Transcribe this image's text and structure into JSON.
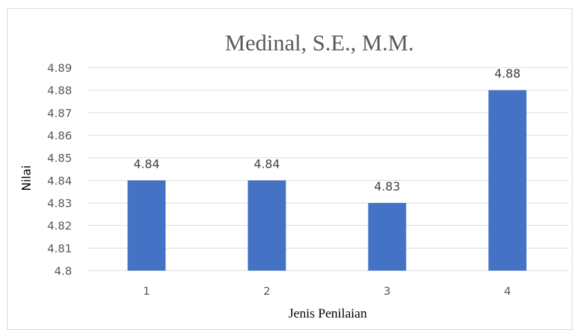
{
  "chart_data": {
    "type": "bar",
    "title": "Medinal, S.E., M.M.",
    "xlabel": "Jenis Penilaian",
    "ylabel": "Nilai",
    "categories": [
      "1",
      "2",
      "3",
      "4"
    ],
    "values": [
      4.84,
      4.84,
      4.83,
      4.88
    ],
    "data_labels": [
      "4.84",
      "4.84",
      "4.83",
      "4.88"
    ],
    "ylim": [
      4.8,
      4.89
    ],
    "yticks": [
      "4.8",
      "4.81",
      "4.82",
      "4.83",
      "4.84",
      "4.85",
      "4.86",
      "4.87",
      "4.88",
      "4.89"
    ],
    "grid": true,
    "legend": "none",
    "bar_color": "#4472C4",
    "grid_color": "#d9d9d9"
  }
}
